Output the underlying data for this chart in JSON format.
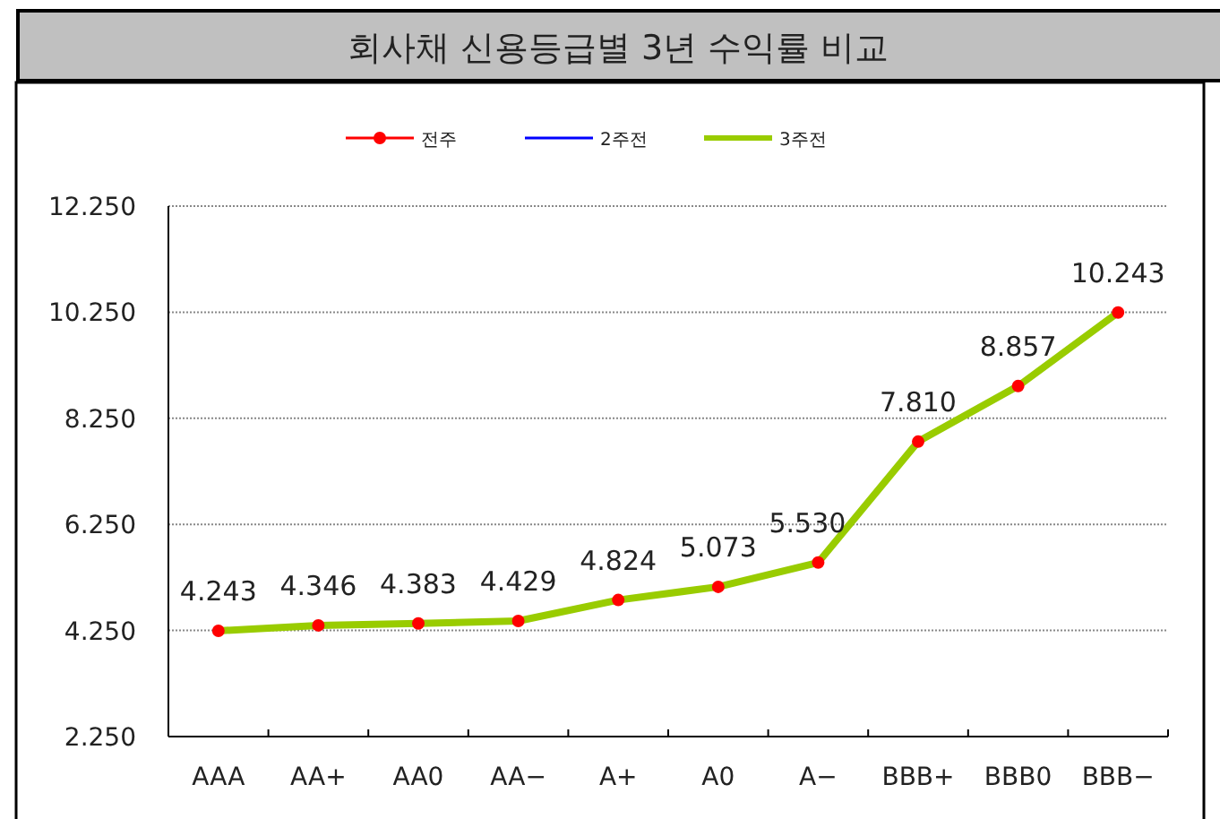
{
  "chart_data": {
    "type": "line",
    "title": "회사채 신용등급별 3년 수익률 비교",
    "categories": [
      "AAA",
      "AA+",
      "AA0",
      "AA−",
      "A+",
      "A0",
      "A−",
      "BBB+",
      "BBB0",
      "BBB−"
    ],
    "series": [
      {
        "name": "전주",
        "type": "scatter",
        "color": "#ff0000",
        "marker": "circle",
        "values": [
          4.243,
          4.346,
          4.383,
          4.429,
          4.824,
          5.073,
          5.53,
          7.81,
          8.857,
          10.243
        ]
      },
      {
        "name": "2주전",
        "color": "#0000ff",
        "values": [
          null,
          null,
          null,
          null,
          null,
          null,
          null,
          null,
          null,
          null
        ]
      },
      {
        "name": "3주전",
        "color": "#99cc00",
        "values": [
          4.243,
          4.346,
          4.383,
          4.429,
          4.824,
          5.073,
          5.53,
          7.81,
          8.857,
          10.243
        ]
      }
    ],
    "ylim": [
      2.25,
      12.25
    ],
    "yticks": [
      {
        "value": 2.25,
        "label": "2.250"
      },
      {
        "value": 4.25,
        "label": "4.250"
      },
      {
        "value": 6.25,
        "label": "6.250"
      },
      {
        "value": 8.25,
        "label": "8.250"
      },
      {
        "value": 10.25,
        "label": "10.250"
      },
      {
        "value": 12.25,
        "label": "12.250"
      }
    ],
    "value_labels": [
      "4.243",
      "4.346",
      "4.383",
      "4.429",
      "4.824",
      "5.073",
      "5.530",
      "7.810",
      "8.857",
      "10.243"
    ],
    "grid": "y",
    "legend": "top"
  }
}
